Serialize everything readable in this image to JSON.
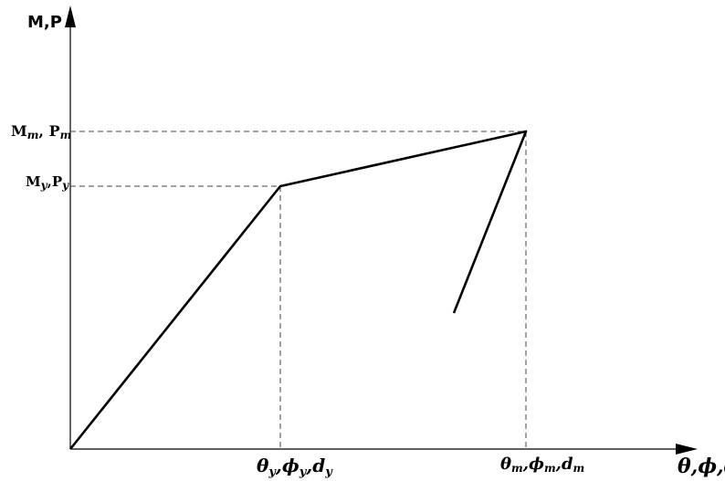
{
  "diagram": {
    "y_axis_title": "M,P",
    "x_axis_title": "θ,ϕ,d",
    "y_labels": {
      "max": {
        "base": "M",
        "sub1": "m",
        "sep": ", P",
        "sub2": "m"
      },
      "yield": {
        "base": "M",
        "sub1": "y",
        "sep": ",P",
        "sub2": "y"
      }
    },
    "x_labels": {
      "yield": {
        "a": "θ",
        "sa": "y",
        "b": "ϕ",
        "sb": "y",
        "c": "d",
        "sc": "y"
      },
      "max": {
        "a": "θ",
        "sa": "m",
        "b": "ϕ",
        "sb": "m",
        "c": "d",
        "sc": "m"
      }
    },
    "colors": {
      "line": "#000000",
      "dash": "#444444"
    }
  }
}
